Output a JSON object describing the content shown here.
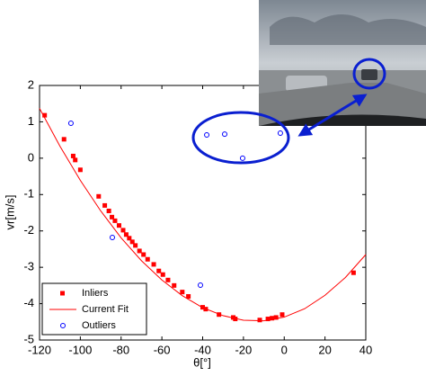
{
  "chart_data": {
    "type": "scatter",
    "xlabel": "θ[°]",
    "ylabel": "vr[m/s]",
    "xlim": [
      -120,
      40
    ],
    "ylim": [
      -5,
      2
    ],
    "xticks": [
      -120,
      -100,
      -80,
      -60,
      -40,
      -20,
      0,
      20,
      40
    ],
    "yticks": [
      -5,
      -4,
      -3,
      -2,
      -1,
      0,
      1,
      2
    ],
    "legend": "lower left",
    "series": [
      {
        "name": "Inliers",
        "color": "#ff0000",
        "marker": "square",
        "x": [
          -117.5,
          -108,
          -103.5,
          -102.5,
          -100,
          -91,
          -88,
          -86,
          -84.5,
          -83,
          -81,
          -79,
          -77.5,
          -76,
          -74.5,
          -73,
          -71,
          -69,
          -67,
          -64,
          -61.5,
          -59.5,
          -57,
          -54,
          -50,
          -47,
          -40,
          -38.5,
          -32,
          -25,
          -24,
          -12,
          -8,
          -6,
          -4,
          -1,
          34
        ],
        "values": [
          1.18,
          0.52,
          0.06,
          -0.05,
          -0.32,
          -1.05,
          -1.3,
          -1.45,
          -1.62,
          -1.72,
          -1.85,
          -1.98,
          -2.1,
          -2.2,
          -2.3,
          -2.4,
          -2.55,
          -2.65,
          -2.78,
          -2.92,
          -3.1,
          -3.2,
          -3.35,
          -3.5,
          -3.68,
          -3.8,
          -4.1,
          -4.15,
          -4.3,
          -4.38,
          -4.42,
          -4.45,
          -4.42,
          -4.4,
          -4.38,
          -4.3,
          -3.15
        ]
      },
      {
        "name": "Current Fit",
        "color": "#ff0000",
        "marker": "line",
        "x": [
          -120,
          -110,
          -100,
          -90,
          -80,
          -70,
          -60,
          -50,
          -40,
          -30,
          -20,
          -10,
          0,
          10,
          20,
          30,
          40
        ],
        "values": [
          1.37,
          0.33,
          -0.61,
          -1.45,
          -2.19,
          -2.82,
          -3.35,
          -3.78,
          -4.11,
          -4.33,
          -4.455,
          -4.47,
          -4.37,
          -4.14,
          -3.77,
          -3.28,
          -2.65
        ]
      },
      {
        "name": "Outliers",
        "color": "#0000ff",
        "marker": "circle",
        "x": [
          -104.6,
          -84.3,
          -41.1,
          -38,
          -29.2,
          -20.4,
          -1.9
        ],
        "values": [
          0.96,
          -2.18,
          -3.49,
          0.64,
          0.66,
          0.0,
          0.69
        ]
      }
    ]
  }
}
